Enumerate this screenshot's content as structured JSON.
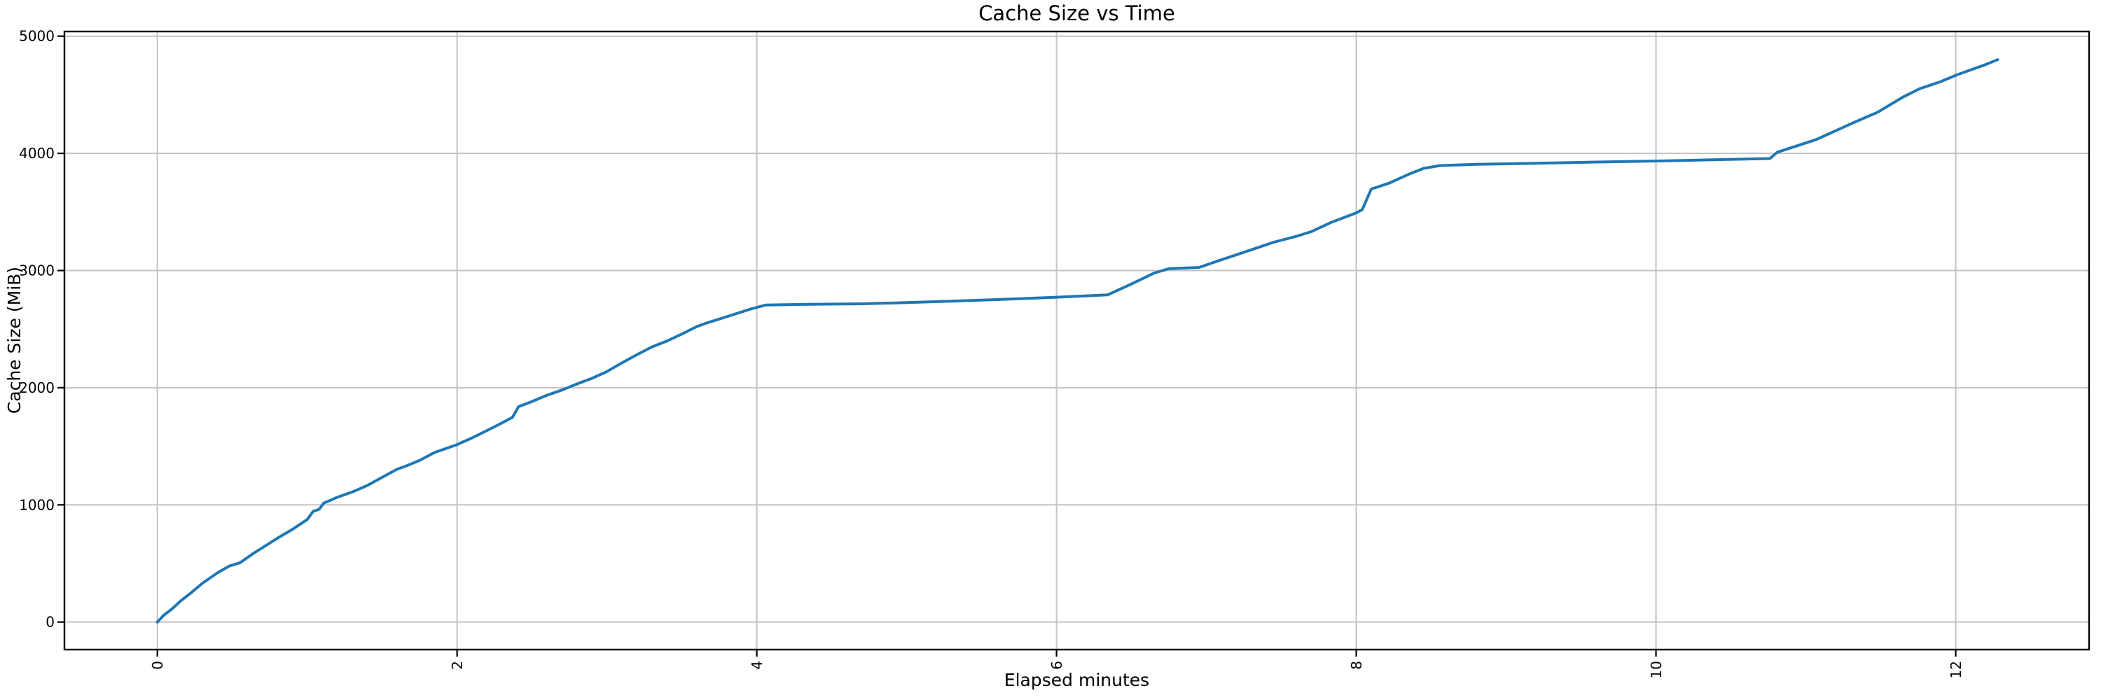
{
  "chart_data": {
    "type": "line",
    "title": "Cache Size vs Time",
    "xlabel": "Elapsed minutes",
    "ylabel": "Cache Size (MiB)",
    "x_ticks": [
      0,
      2,
      4,
      6,
      8,
      10,
      12
    ],
    "y_ticks": [
      0,
      1000,
      2000,
      3000,
      4000,
      5000
    ],
    "xlim": [
      -0.62,
      12.89
    ],
    "ylim": [
      -235,
      5040
    ],
    "grid": true,
    "legend_position": "none",
    "x_tick_rotation": 90,
    "colors": {
      "line": "#1f77b4",
      "grid": "#c3c3c3",
      "spine": "#000000",
      "text": "#000000"
    },
    "series": [
      {
        "name": "cache-size",
        "color": "#1f77b4",
        "points": [
          [
            0.0,
            0
          ],
          [
            0.04,
            55
          ],
          [
            0.1,
            115
          ],
          [
            0.16,
            185
          ],
          [
            0.22,
            245
          ],
          [
            0.3,
            330
          ],
          [
            0.4,
            420
          ],
          [
            0.48,
            478
          ],
          [
            0.55,
            505
          ],
          [
            0.64,
            585
          ],
          [
            0.72,
            650
          ],
          [
            0.8,
            715
          ],
          [
            0.9,
            790
          ],
          [
            1.0,
            875
          ],
          [
            1.04,
            945
          ],
          [
            1.08,
            963
          ],
          [
            1.11,
            1015
          ],
          [
            1.2,
            1065
          ],
          [
            1.3,
            1110
          ],
          [
            1.4,
            1165
          ],
          [
            1.5,
            1235
          ],
          [
            1.6,
            1305
          ],
          [
            1.66,
            1332
          ],
          [
            1.75,
            1380
          ],
          [
            1.85,
            1447
          ],
          [
            2.0,
            1515
          ],
          [
            2.1,
            1572
          ],
          [
            2.2,
            1635
          ],
          [
            2.3,
            1700
          ],
          [
            2.37,
            1748
          ],
          [
            2.41,
            1838
          ],
          [
            2.5,
            1882
          ],
          [
            2.6,
            1936
          ],
          [
            2.7,
            1980
          ],
          [
            2.8,
            2032
          ],
          [
            2.9,
            2080
          ],
          [
            3.0,
            2138
          ],
          [
            3.1,
            2212
          ],
          [
            3.2,
            2282
          ],
          [
            3.3,
            2348
          ],
          [
            3.4,
            2398
          ],
          [
            3.5,
            2458
          ],
          [
            3.6,
            2522
          ],
          [
            3.66,
            2550
          ],
          [
            3.8,
            2606
          ],
          [
            3.95,
            2668
          ],
          [
            4.06,
            2706
          ],
          [
            4.3,
            2711
          ],
          [
            4.7,
            2716
          ],
          [
            5.0,
            2726
          ],
          [
            5.3,
            2738
          ],
          [
            5.6,
            2752
          ],
          [
            6.0,
            2772
          ],
          [
            6.34,
            2792
          ],
          [
            6.5,
            2885
          ],
          [
            6.65,
            2978
          ],
          [
            6.75,
            3016
          ],
          [
            6.95,
            3026
          ],
          [
            7.1,
            3092
          ],
          [
            7.26,
            3160
          ],
          [
            7.45,
            3242
          ],
          [
            7.6,
            3292
          ],
          [
            7.7,
            3332
          ],
          [
            7.83,
            3410
          ],
          [
            8.0,
            3492
          ],
          [
            8.04,
            3520
          ],
          [
            8.1,
            3696
          ],
          [
            8.22,
            3746
          ],
          [
            8.35,
            3822
          ],
          [
            8.45,
            3872
          ],
          [
            8.56,
            3896
          ],
          [
            8.8,
            3906
          ],
          [
            9.2,
            3916
          ],
          [
            9.6,
            3926
          ],
          [
            10.07,
            3936
          ],
          [
            10.4,
            3946
          ],
          [
            10.76,
            3956
          ],
          [
            10.81,
            4010
          ],
          [
            11.07,
            4118
          ],
          [
            11.3,
            4252
          ],
          [
            11.48,
            4352
          ],
          [
            11.65,
            4482
          ],
          [
            11.76,
            4552
          ],
          [
            11.9,
            4612
          ],
          [
            12.0,
            4666
          ],
          [
            12.1,
            4712
          ],
          [
            12.2,
            4758
          ],
          [
            12.28,
            4800
          ]
        ]
      }
    ]
  }
}
